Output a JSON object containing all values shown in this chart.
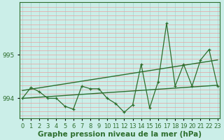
{
  "xlabel": "Graphe pression niveau de la mer (hPa)",
  "x_ticks": [
    0,
    1,
    2,
    3,
    4,
    5,
    6,
    7,
    8,
    9,
    10,
    11,
    12,
    13,
    14,
    15,
    16,
    17,
    18,
    19,
    20,
    21,
    22,
    23
  ],
  "ylim": [
    993.55,
    996.2
  ],
  "yticks": [
    994,
    995
  ],
  "bg_color": "#cbeee8",
  "grid_color_h": "#e8a0a0",
  "grid_color_v": "#a8d4ce",
  "line_color": "#2d6e2d",
  "main_line": [
    994.0,
    994.25,
    994.15,
    994.0,
    994.0,
    993.82,
    993.75,
    994.28,
    994.22,
    994.22,
    994.0,
    993.88,
    993.68,
    993.85,
    994.78,
    993.78,
    994.38,
    995.72,
    994.28,
    994.78,
    994.28,
    994.88,
    995.12,
    994.28
  ],
  "upper_line_x": [
    0,
    23
  ],
  "upper_line_y": [
    994.18,
    994.88
  ],
  "lower_line_x": [
    0,
    23
  ],
  "lower_line_y": [
    994.0,
    994.3
  ],
  "font_color": "#2d6e2d",
  "tick_fontsize": 6.5,
  "label_fontsize": 7.5
}
